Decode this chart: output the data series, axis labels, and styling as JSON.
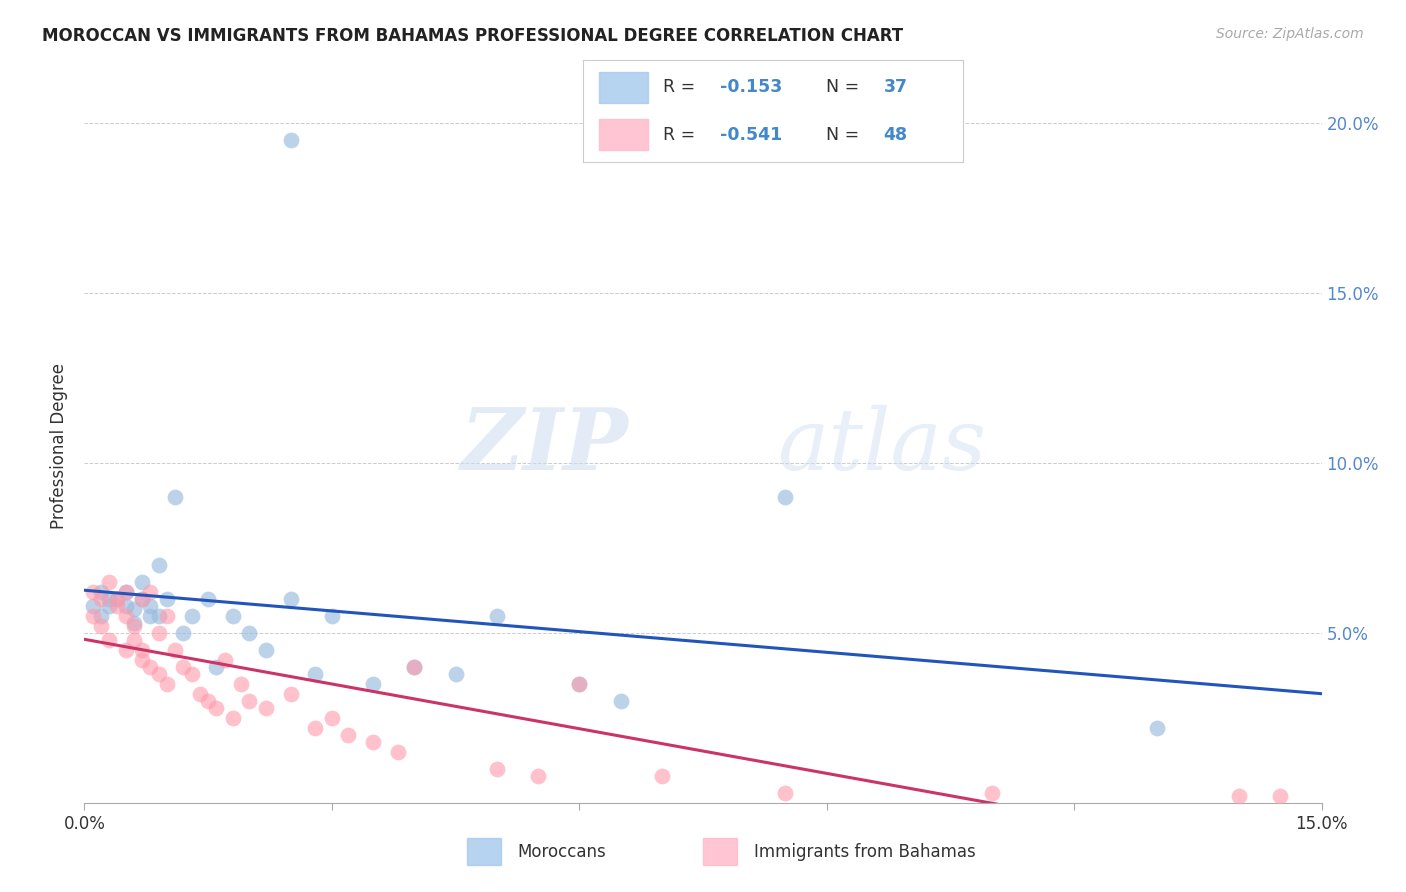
{
  "title": "MOROCCAN VS IMMIGRANTS FROM BAHAMAS PROFESSIONAL DEGREE CORRELATION CHART",
  "source": "Source: ZipAtlas.com",
  "ylabel": "Professional Degree",
  "xlim": [
    0.0,
    0.15
  ],
  "ylim": [
    0.0,
    0.21
  ],
  "grid_color": "#cccccc",
  "background_color": "#ffffff",
  "blue_color": "#99bbdd",
  "pink_color": "#ff99aa",
  "blue_line_color": "#2255bb",
  "pink_line_color": "#cc3366",
  "blue_fill_color": "#aaccee",
  "pink_fill_color": "#ffbbcc",
  "watermark_color": "#ddeeff",
  "tick_color": "#aaaaaa",
  "label_color": "#333333",
  "right_tick_color": "#5588cc",
  "legend_border_color": "#cccccc",
  "moroccan_x": [
    0.001,
    0.002,
    0.002,
    0.003,
    0.003,
    0.004,
    0.005,
    0.005,
    0.006,
    0.006,
    0.007,
    0.007,
    0.008,
    0.008,
    0.009,
    0.009,
    0.01,
    0.011,
    0.012,
    0.013,
    0.015,
    0.016,
    0.018,
    0.02,
    0.022,
    0.025,
    0.028,
    0.03,
    0.035,
    0.04,
    0.045,
    0.05,
    0.06,
    0.065,
    0.085,
    0.13,
    0.025
  ],
  "moroccan_y": [
    0.058,
    0.062,
    0.055,
    0.06,
    0.058,
    0.06,
    0.058,
    0.062,
    0.057,
    0.053,
    0.06,
    0.065,
    0.058,
    0.055,
    0.07,
    0.055,
    0.06,
    0.09,
    0.05,
    0.055,
    0.06,
    0.04,
    0.055,
    0.05,
    0.045,
    0.06,
    0.038,
    0.055,
    0.035,
    0.04,
    0.038,
    0.055,
    0.035,
    0.03,
    0.09,
    0.022,
    0.195
  ],
  "bahamas_x": [
    0.001,
    0.001,
    0.002,
    0.002,
    0.003,
    0.003,
    0.004,
    0.004,
    0.005,
    0.005,
    0.005,
    0.006,
    0.006,
    0.007,
    0.007,
    0.007,
    0.008,
    0.008,
    0.009,
    0.009,
    0.01,
    0.01,
    0.011,
    0.012,
    0.013,
    0.014,
    0.015,
    0.016,
    0.017,
    0.018,
    0.019,
    0.02,
    0.022,
    0.025,
    0.028,
    0.03,
    0.032,
    0.035,
    0.038,
    0.04,
    0.05,
    0.055,
    0.06,
    0.07,
    0.085,
    0.11,
    0.14,
    0.145
  ],
  "bahamas_y": [
    0.062,
    0.055,
    0.06,
    0.052,
    0.065,
    0.048,
    0.06,
    0.058,
    0.055,
    0.062,
    0.045,
    0.052,
    0.048,
    0.06,
    0.045,
    0.042,
    0.04,
    0.062,
    0.05,
    0.038,
    0.055,
    0.035,
    0.045,
    0.04,
    0.038,
    0.032,
    0.03,
    0.028,
    0.042,
    0.025,
    0.035,
    0.03,
    0.028,
    0.032,
    0.022,
    0.025,
    0.02,
    0.018,
    0.015,
    0.04,
    0.01,
    0.008,
    0.035,
    0.008,
    0.003,
    0.003,
    0.002,
    0.002
  ]
}
